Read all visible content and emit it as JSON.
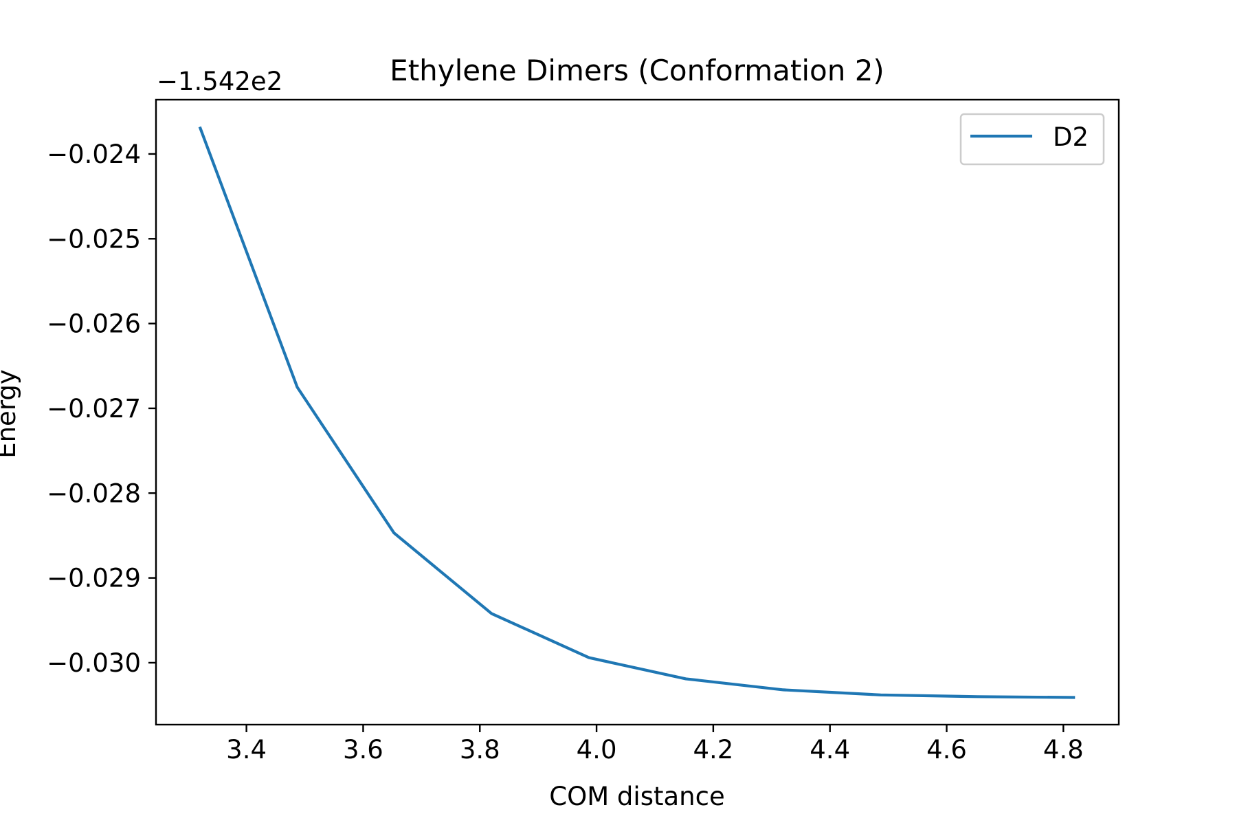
{
  "chart_data": {
    "type": "line",
    "title": "Ethylene Dimers (Conformation 2)",
    "xlabel": "COM distance",
    "ylabel": "Energy",
    "y_offset_label": "−1.542e2",
    "y_offset_value": -154.2,
    "xlim": [
      3.245,
      4.895
    ],
    "ylim": [
      -0.03073,
      -0.02336
    ],
    "x_ticks": [
      3.4,
      3.6,
      3.8,
      4.0,
      4.2,
      4.4,
      4.6,
      4.8
    ],
    "x_tick_labels": [
      "3.4",
      "3.6",
      "3.8",
      "4.0",
      "4.2",
      "4.4",
      "4.6",
      "4.8"
    ],
    "y_ticks": [
      -0.024,
      -0.025,
      -0.026,
      -0.027,
      -0.028,
      -0.029,
      -0.03
    ],
    "y_tick_labels": [
      "−0.024",
      "−0.025",
      "−0.026",
      "−0.027",
      "−0.028",
      "−0.029",
      "−0.030"
    ],
    "grid": false,
    "legend_position": "top-right",
    "series": [
      {
        "name": "D2",
        "color": "#1f77b4",
        "x": [
          3.32,
          3.487,
          3.653,
          3.82,
          3.987,
          4.153,
          4.32,
          4.487,
          4.653,
          4.82
        ],
        "y": [
          -0.02368,
          -0.02675,
          -0.02847,
          -0.02942,
          -0.02994,
          -0.03019,
          -0.03032,
          -0.03038,
          -0.0304,
          -0.03041
        ]
      }
    ]
  }
}
